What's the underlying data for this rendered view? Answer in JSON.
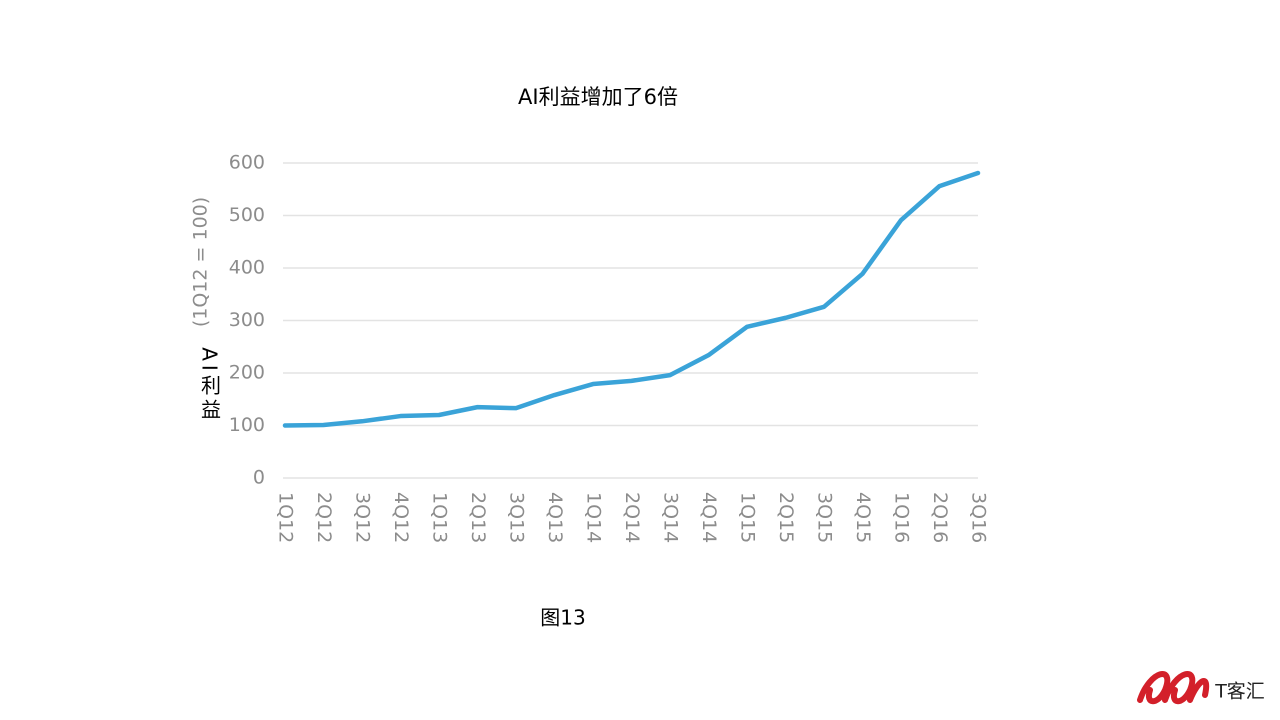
{
  "chart_data": {
    "type": "line",
    "title": "AI利益增加了6倍",
    "ylabel": "AI利益",
    "ylabel_note": "(1Q12 = 100)",
    "categories": [
      "1Q12",
      "2Q12",
      "3Q12",
      "4Q12",
      "1Q13",
      "2Q13",
      "3Q13",
      "4Q13",
      "1Q14",
      "2Q14",
      "3Q14",
      "4Q14",
      "1Q15",
      "2Q15",
      "3Q15",
      "4Q15",
      "1Q16",
      "2Q16",
      "3Q16"
    ],
    "series": [
      {
        "name": "AI利益",
        "color": "#3aa3d8",
        "values": [
          100,
          101,
          108,
          118,
          120,
          135,
          133,
          158,
          179,
          185,
          196,
          234,
          288,
          305,
          326,
          389,
          491,
          556,
          581
        ]
      }
    ],
    "ylim": [
      0,
      600
    ],
    "yticks": [
      0,
      100,
      200,
      300,
      400,
      500,
      600
    ],
    "grid": true
  },
  "caption": "图13",
  "logo": "T客汇"
}
